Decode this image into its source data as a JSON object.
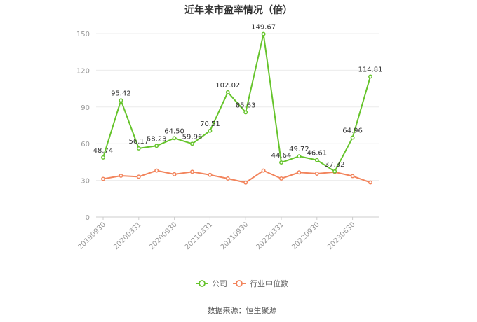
{
  "chart_data": {
    "type": "line",
    "title": "近年来市盈率情况（倍）",
    "xlabel": "",
    "ylabel": "",
    "ylim": [
      0,
      150
    ],
    "yticks": [
      0,
      30,
      60,
      90,
      120,
      150
    ],
    "x_tick_labels": [
      "20190930",
      "20200331",
      "20200930",
      "20210331",
      "20210930",
      "20220331",
      "20220930",
      "20230630"
    ],
    "grid": "horizontal",
    "legend_position": "bottom",
    "series": [
      {
        "name": "公司",
        "color": "#66c42c",
        "values": [
          48.74,
          95.42,
          56.17,
          58.23,
          64.5,
          59.96,
          70.51,
          102.02,
          85.63,
          149.67,
          44.64,
          49.72,
          46.61,
          37.32,
          64.96,
          114.81
        ],
        "labels": [
          "48.74",
          "95.42",
          "56.17",
          "58.23",
          "64.50",
          "59.96",
          "70.51",
          "102.02",
          "85.63",
          "149.67",
          "44.64",
          "49.72",
          "46.61",
          "37.32",
          "64.96",
          "114.81"
        ]
      },
      {
        "name": "行业中位数",
        "color": "#f2845c",
        "values": [
          31.2,
          33.8,
          33.0,
          38.0,
          35.0,
          37.0,
          34.5,
          31.5,
          28.2,
          38.0,
          31.5,
          36.5,
          35.5,
          36.8,
          33.5,
          28.3
        ]
      }
    ],
    "source": "数据来源：恒生聚源"
  }
}
